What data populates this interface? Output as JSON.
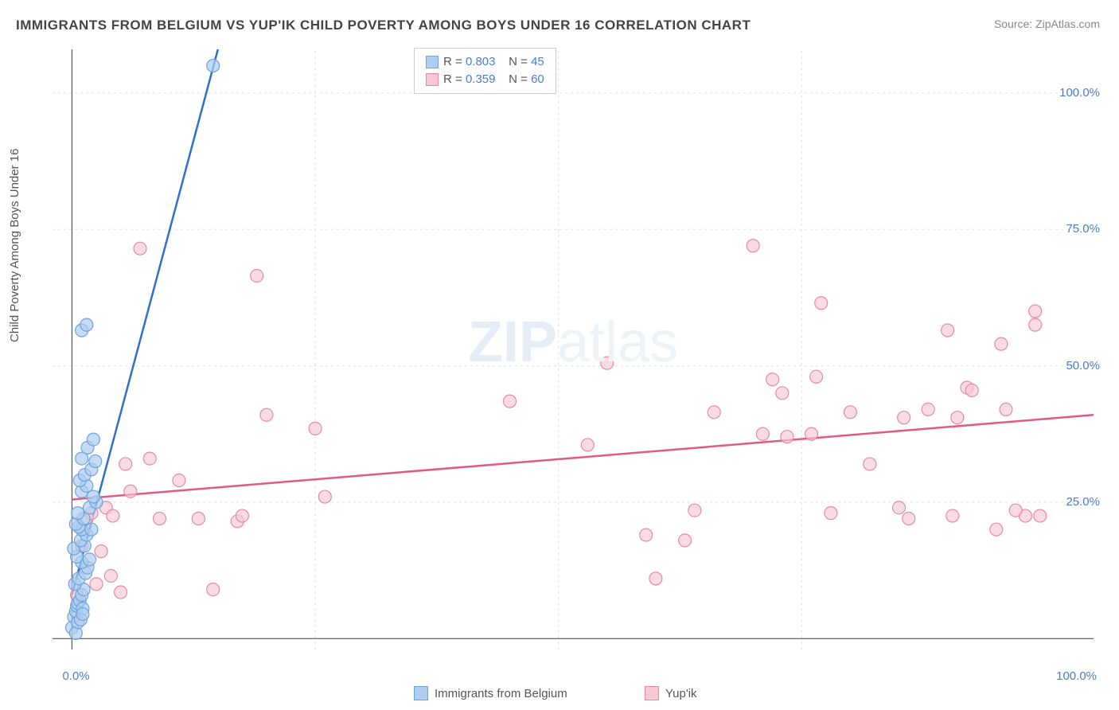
{
  "title": "IMMIGRANTS FROM BELGIUM VS YUP'IK CHILD POVERTY AMONG BOYS UNDER 16 CORRELATION CHART",
  "source_label": "Source: ZipAtlas.com",
  "ylabel": "Child Poverty Among Boys Under 16",
  "watermark_prefix": "ZIP",
  "watermark_suffix": "atlas",
  "plot": {
    "background_color": "#ffffff",
    "grid_color": "#e0e0e0",
    "axis_color": "#555555",
    "tick_label_color": "#4a7dc9",
    "xlim": [
      -2,
      105
    ],
    "ylim": [
      -2,
      108
    ],
    "y_ticks": [
      25,
      50,
      75,
      100
    ],
    "y_tick_labels": [
      "25.0%",
      "50.0%",
      "75.0%",
      "100.0%"
    ],
    "x_ticks": [
      0,
      100
    ],
    "x_tick_labels": [
      "0.0%",
      "100.0%"
    ],
    "x_minor_grid": [
      25,
      50,
      75
    ]
  },
  "series_a": {
    "name": "Immigrants from Belgium",
    "fill_color": "#aecdf0",
    "stroke_color": "#6fa3dd",
    "line_color": "#2f6fd0",
    "marker_radius": 8,
    "marker_opacity": 0.7,
    "line_width": 2.5,
    "R": "0.803",
    "N": "45",
    "regression": {
      "x1": 0.0,
      "y1": 8.0,
      "x2": 15.0,
      "y2": 108.0
    },
    "points": [
      [
        0.0,
        2.0
      ],
      [
        0.2,
        4.0
      ],
      [
        0.4,
        5.0
      ],
      [
        0.5,
        6.0
      ],
      [
        0.6,
        6.5
      ],
      [
        0.8,
        7.0
      ],
      [
        1.0,
        8.0
      ],
      [
        1.1,
        5.5
      ],
      [
        1.2,
        9.0
      ],
      [
        0.3,
        10.0
      ],
      [
        0.7,
        11.0
      ],
      [
        1.4,
        12.0
      ],
      [
        1.6,
        13.0
      ],
      [
        1.0,
        14.0
      ],
      [
        0.5,
        15.0
      ],
      [
        1.8,
        14.5
      ],
      [
        0.2,
        16.5
      ],
      [
        1.3,
        17.0
      ],
      [
        0.9,
        18.0
      ],
      [
        1.5,
        19.0
      ],
      [
        1.0,
        20.0
      ],
      [
        0.7,
        20.5
      ],
      [
        2.0,
        20.0
      ],
      [
        0.4,
        21.0
      ],
      [
        1.2,
        22.0
      ],
      [
        0.6,
        23.0
      ],
      [
        1.8,
        24.0
      ],
      [
        2.5,
        25.0
      ],
      [
        2.2,
        26.0
      ],
      [
        1.0,
        27.0
      ],
      [
        1.5,
        28.0
      ],
      [
        0.8,
        29.0
      ],
      [
        1.3,
        30.0
      ],
      [
        2.0,
        31.0
      ],
      [
        2.4,
        32.5
      ],
      [
        1.0,
        33.0
      ],
      [
        1.6,
        35.0
      ],
      [
        2.2,
        36.5
      ],
      [
        1.0,
        56.5
      ],
      [
        1.5,
        57.5
      ],
      [
        0.4,
        1.0
      ],
      [
        0.6,
        3.0
      ],
      [
        0.9,
        3.5
      ],
      [
        1.1,
        4.5
      ],
      [
        14.5,
        105.0
      ]
    ]
  },
  "series_b": {
    "name": "Yup'ik",
    "fill_color": "#f6c8d4",
    "stroke_color": "#e68aa3",
    "line_color": "#e05a82",
    "marker_radius": 8,
    "marker_opacity": 0.65,
    "line_width": 2.5,
    "R": "0.359",
    "N": "60",
    "regression": {
      "x1": 0.0,
      "y1": 25.5,
      "x2": 105.0,
      "y2": 41.0
    },
    "points": [
      [
        0.5,
        8.0
      ],
      [
        1.0,
        17.0
      ],
      [
        1.5,
        22.0
      ],
      [
        2.0,
        23.0
      ],
      [
        2.5,
        10.0
      ],
      [
        3.0,
        16.0
      ],
      [
        3.5,
        24.0
      ],
      [
        4.0,
        11.5
      ],
      [
        4.2,
        22.5
      ],
      [
        5.0,
        8.5
      ],
      [
        5.5,
        32.0
      ],
      [
        6.0,
        27.0
      ],
      [
        7.0,
        71.5
      ],
      [
        8.0,
        33.0
      ],
      [
        9.0,
        22.0
      ],
      [
        11.0,
        29.0
      ],
      [
        13.0,
        22.0
      ],
      [
        14.5,
        9.0
      ],
      [
        17.0,
        21.5
      ],
      [
        17.5,
        22.5
      ],
      [
        19.0,
        66.5
      ],
      [
        20.0,
        41.0
      ],
      [
        25.0,
        38.5
      ],
      [
        26.0,
        26.0
      ],
      [
        45.0,
        43.5
      ],
      [
        53.0,
        35.5
      ],
      [
        55.0,
        50.5
      ],
      [
        59.0,
        19.0
      ],
      [
        60.0,
        11.0
      ],
      [
        63.0,
        18.0
      ],
      [
        64.0,
        23.5
      ],
      [
        66.0,
        41.5
      ],
      [
        70.0,
        72.0
      ],
      [
        71.0,
        37.5
      ],
      [
        72.0,
        47.5
      ],
      [
        73.0,
        45.0
      ],
      [
        73.5,
        37.0
      ],
      [
        76.0,
        37.5
      ],
      [
        76.5,
        48.0
      ],
      [
        77.0,
        61.5
      ],
      [
        78.0,
        23.0
      ],
      [
        80.0,
        41.5
      ],
      [
        82.0,
        32.0
      ],
      [
        85.0,
        24.0
      ],
      [
        85.5,
        40.5
      ],
      [
        86.0,
        22.0
      ],
      [
        88.0,
        42.0
      ],
      [
        90.0,
        56.5
      ],
      [
        90.5,
        22.5
      ],
      [
        91.0,
        40.5
      ],
      [
        92.0,
        46.0
      ],
      [
        92.5,
        45.5
      ],
      [
        95.0,
        20.0
      ],
      [
        95.5,
        54.0
      ],
      [
        96.0,
        42.0
      ],
      [
        98.0,
        22.5
      ],
      [
        99.0,
        57.5
      ],
      [
        99.0,
        60.0
      ],
      [
        99.5,
        22.5
      ],
      [
        97.0,
        23.5
      ]
    ]
  },
  "legend_bottom": {
    "a_label": "Immigrants from Belgium",
    "b_label": "Yup'ik"
  }
}
